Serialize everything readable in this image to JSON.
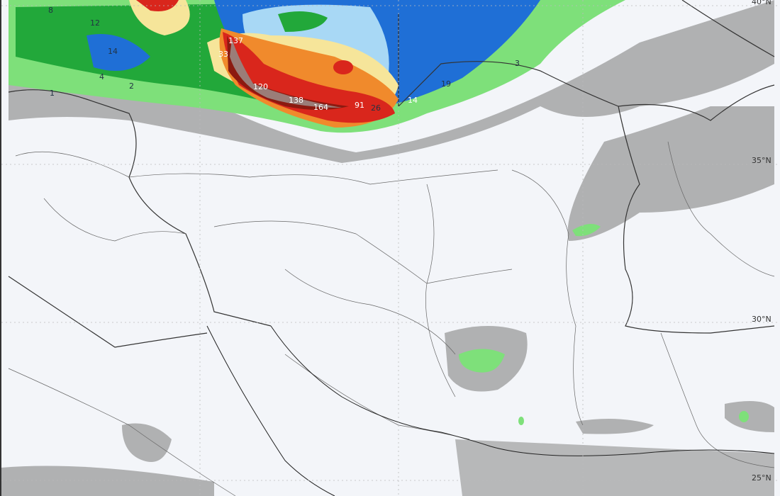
{
  "latitude_labels": [
    "40°N",
    "35°N",
    "30°N",
    "25°N"
  ],
  "precip_labels": [
    {
      "text": "8",
      "style": "dark"
    },
    {
      "text": "12",
      "style": "dark"
    },
    {
      "text": "14",
      "style": "dark"
    },
    {
      "text": "33",
      "style": "light"
    },
    {
      "text": "137",
      "style": "light"
    },
    {
      "text": "120",
      "style": "light"
    },
    {
      "text": "138",
      "style": "light"
    },
    {
      "text": "164",
      "style": "light"
    },
    {
      "text": "91",
      "style": "light"
    },
    {
      "text": "26",
      "style": "dark"
    },
    {
      "text": "14",
      "style": "light"
    },
    {
      "text": "19",
      "style": "dark"
    },
    {
      "text": "3",
      "style": "dark"
    },
    {
      "text": "4",
      "style": "dark"
    },
    {
      "text": "1",
      "style": "dark"
    },
    {
      "text": "2",
      "style": "dark"
    }
  ],
  "colors": {
    "background": "#f3f5f9",
    "light_rain": "#8e8e8e",
    "green": "#22a83a",
    "light_green": "#7ee07a",
    "blue": "#1f6fd6",
    "light_blue": "#a8d8f5",
    "yellow": "#f6e59a",
    "orange": "#f08a2c",
    "red": "#d9261c",
    "dark_red": "#8c1a10",
    "brown_peak": "#9b7d78",
    "border": "#333333"
  }
}
